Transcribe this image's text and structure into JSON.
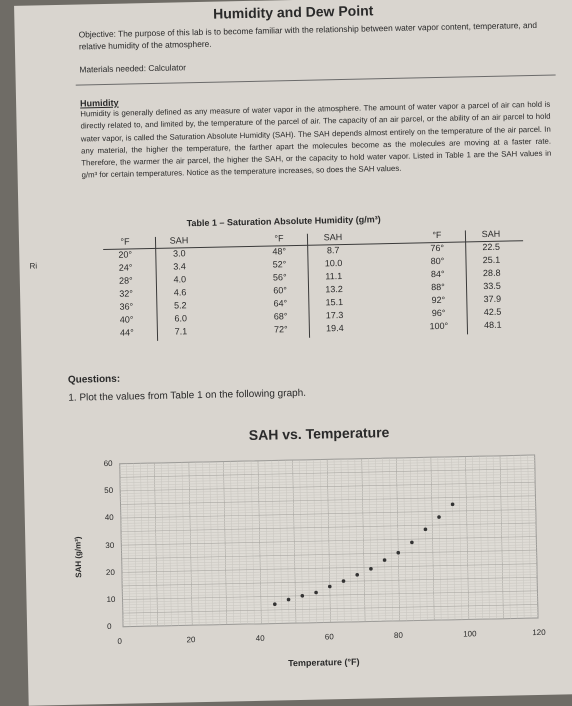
{
  "header": {
    "title": "Humidity and Dew Point",
    "objective": "Objective: The purpose of this lab is to become familiar with the relationship between water vapor content, temperature, and relative humidity of the atmosphere.",
    "materials": "Materials needed: Calculator"
  },
  "humidity": {
    "heading": "Humidity",
    "text": "Humidity is generally defined as any measure of water vapor in the atmosphere. The amount of water vapor a parcel of air can hold is directly related to, and limited by, the temperature of the parcel of air. The capacity of an air parcel, or the ability of an air parcel to hold water vapor, is called the Saturation Absolute Humidity (SAH). The SAH depends almost entirely on the temperature of the air parcel. In any material, the higher the temperature, the farther apart the molecules become as the molecules are moving at a faster rate. Therefore, the warmer the air parcel, the higher the SAH, or the capacity to hold water vapor. Listed in Table 1 are the SAH values in g/m³ for certain temperatures. Notice as the temperature increases, so does the SAH values."
  },
  "table": {
    "caption": "Table 1 – Saturation Absolute Humidity (g/m³)",
    "col_f": "°F",
    "col_sah": "SAH",
    "groups": [
      {
        "temps": [
          "20°",
          "24°",
          "28°",
          "32°",
          "36°",
          "40°",
          "44°"
        ],
        "sah": [
          "3.0",
          "3.4",
          "4.0",
          "4.6",
          "5.2",
          "6.0",
          "7.1"
        ]
      },
      {
        "temps": [
          "48°",
          "52°",
          "56°",
          "60°",
          "64°",
          "68°",
          "72°"
        ],
        "sah": [
          "8.7",
          "10.0",
          "11.1",
          "13.2",
          "15.1",
          "17.3",
          "19.4"
        ]
      },
      {
        "temps": [
          "76°",
          "80°",
          "84°",
          "88°",
          "92°",
          "96°",
          "100°"
        ],
        "sah": [
          "22.5",
          "25.1",
          "28.8",
          "33.5",
          "37.9",
          "42.5",
          "48.1"
        ]
      }
    ]
  },
  "side_mark": "Ri",
  "questions": {
    "heading": "Questions:",
    "q1": "1. Plot the values from Table 1 on the following graph."
  },
  "chart_data": {
    "type": "scatter",
    "title": "SAH vs. Temperature",
    "xlabel": "Temperature (°F)",
    "ylabel": "SAH (g/m³)",
    "xlim": [
      0,
      120
    ],
    "ylim": [
      0,
      60
    ],
    "xticks": [
      "0",
      "20",
      "40",
      "60",
      "80",
      "100",
      "120"
    ],
    "yticks": [
      "0",
      "10",
      "20",
      "30",
      "40",
      "50",
      "60"
    ],
    "grid": true,
    "points": [
      {
        "x": 44,
        "y": 7.1
      },
      {
        "x": 48,
        "y": 8.7
      },
      {
        "x": 52,
        "y": 10.0
      },
      {
        "x": 56,
        "y": 11.1
      },
      {
        "x": 60,
        "y": 13.2
      },
      {
        "x": 64,
        "y": 15.1
      },
      {
        "x": 68,
        "y": 17.3
      },
      {
        "x": 72,
        "y": 19.4
      },
      {
        "x": 76,
        "y": 22.5
      },
      {
        "x": 80,
        "y": 25.1
      },
      {
        "x": 84,
        "y": 28.8
      },
      {
        "x": 88,
        "y": 33.5
      },
      {
        "x": 92,
        "y": 37.9
      },
      {
        "x": 96,
        "y": 42.5
      }
    ]
  }
}
